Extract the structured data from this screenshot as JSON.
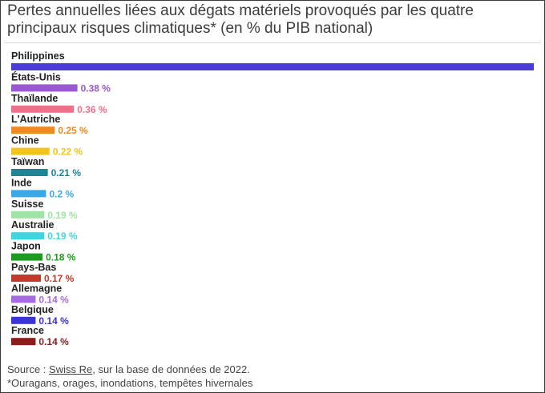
{
  "title": "Pertes annuelles liées aux dégats matériels provoqués par les quatre principaux risques climatiques* (en % du PIB national)",
  "footer": {
    "source_prefix": "Source : ",
    "source_link": "Swiss Re",
    "source_suffix": ", sur la base de données de 2022.",
    "note": "*Ouragans, orages, inondations, tempêtes hivernales"
  },
  "chart_data": {
    "type": "bar",
    "orientation": "horizontal",
    "title": "Pertes annuelles liées aux dégats matériels provoqués par les quatre principaux risques climatiques* (en % du PIB national)",
    "value_suffix": " %",
    "bars": [
      {
        "category": "Philippines",
        "value": 3.0,
        "value_label": "",
        "color": "#4b3bd8"
      },
      {
        "category": "États-Unis",
        "value": 0.38,
        "value_label": "0.38 %",
        "color": "#9b59d0"
      },
      {
        "category": "Thaïlande",
        "value": 0.36,
        "value_label": "0.36 %",
        "color": "#f0708a"
      },
      {
        "category": "L'Autriche",
        "value": 0.25,
        "value_label": "0.25 %",
        "color": "#f08a1c"
      },
      {
        "category": "Chine",
        "value": 0.22,
        "value_label": "0.22 %",
        "color": "#f2c41f"
      },
      {
        "category": "Taïwan",
        "value": 0.21,
        "value_label": "0.21 %",
        "color": "#1e8496"
      },
      {
        "category": "Inde",
        "value": 0.2,
        "value_label": "0.2 %",
        "color": "#3aa8e6"
      },
      {
        "category": "Suisse",
        "value": 0.19,
        "value_label": "0.19 %",
        "color": "#9fe3a6"
      },
      {
        "category": "Australie",
        "value": 0.19,
        "value_label": "0.19 %",
        "color": "#3fd4e0"
      },
      {
        "category": "Japon",
        "value": 0.18,
        "value_label": "0.18 %",
        "color": "#1e9a1e"
      },
      {
        "category": "Pays-Bas",
        "value": 0.17,
        "value_label": "0.17 %",
        "color": "#c0392b"
      },
      {
        "category": "Allemagne",
        "value": 0.14,
        "value_label": "0.14 %",
        "color": "#a66be0"
      },
      {
        "category": "Belgique",
        "value": 0.14,
        "value_label": "0.14 %",
        "color": "#3b34d6"
      },
      {
        "category": "France",
        "value": 0.14,
        "value_label": "0.14 %",
        "color": "#8e1c1c"
      }
    ]
  }
}
